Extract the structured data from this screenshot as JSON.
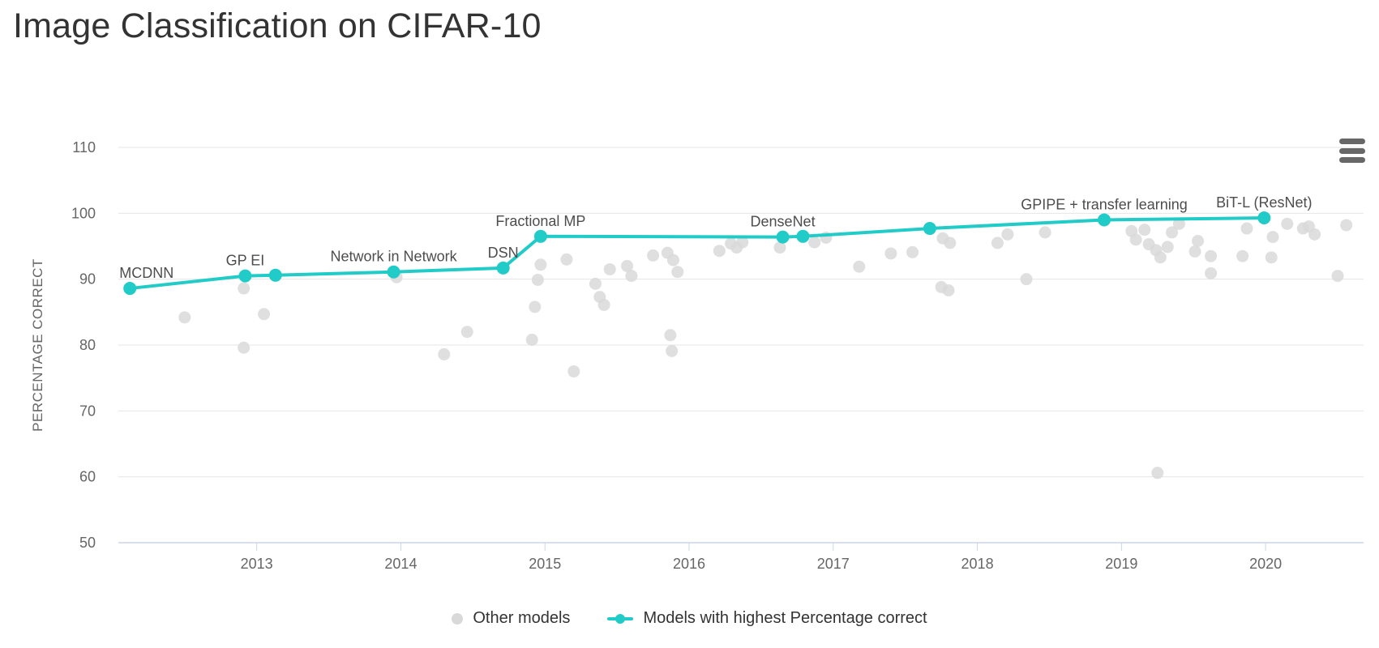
{
  "page": {
    "title": "Image Classification on CIFAR-10",
    "menu_icon": "hamburger",
    "accent_color": "#21cbc7",
    "other_color": "#d9d9d9"
  },
  "chart_data": {
    "type": "scatter",
    "title": "Image Classification on CIFAR-10",
    "xlabel": "",
    "ylabel": "PERCENTAGE CORRECT",
    "x_ticks": [
      "2013",
      "2014",
      "2015",
      "2016",
      "2017",
      "2018",
      "2019",
      "2020"
    ],
    "y_ticks": [
      "50",
      "60",
      "70",
      "80",
      "90",
      "100",
      "110"
    ],
    "x_range": [
      2012.04,
      2020.68
    ],
    "y_range": [
      50,
      110
    ],
    "grid": true,
    "legend_position": "bottom",
    "series": [
      {
        "name": "Other models",
        "type": "scatter",
        "color": "#d9d9d9",
        "points": [
          [
            2012.5,
            84.2
          ],
          [
            2012.91,
            88.6
          ],
          [
            2012.91,
            79.6
          ],
          [
            2013.05,
            84.7
          ],
          [
            2013.97,
            90.3
          ],
          [
            2014.3,
            78.6
          ],
          [
            2014.46,
            82.0
          ],
          [
            2014.91,
            80.8
          ],
          [
            2014.93,
            85.8
          ],
          [
            2014.95,
            89.9
          ],
          [
            2014.97,
            92.2
          ],
          [
            2015.15,
            93.0
          ],
          [
            2015.2,
            76.0
          ],
          [
            2015.35,
            89.3
          ],
          [
            2015.38,
            87.3
          ],
          [
            2015.41,
            86.1
          ],
          [
            2015.45,
            91.5
          ],
          [
            2015.57,
            92.0
          ],
          [
            2015.6,
            90.5
          ],
          [
            2015.75,
            93.6
          ],
          [
            2015.85,
            94.0
          ],
          [
            2015.87,
            81.5
          ],
          [
            2015.88,
            79.1
          ],
          [
            2015.89,
            92.9
          ],
          [
            2015.92,
            91.1
          ],
          [
            2016.21,
            94.3
          ],
          [
            2016.29,
            95.4
          ],
          [
            2016.33,
            94.8
          ],
          [
            2016.37,
            95.6
          ],
          [
            2016.63,
            94.8
          ],
          [
            2016.87,
            95.6
          ],
          [
            2016.95,
            96.3
          ],
          [
            2017.18,
            91.9
          ],
          [
            2017.4,
            93.9
          ],
          [
            2017.55,
            94.1
          ],
          [
            2017.75,
            88.8
          ],
          [
            2017.76,
            96.2
          ],
          [
            2017.8,
            88.3
          ],
          [
            2017.81,
            95.5
          ],
          [
            2018.14,
            95.5
          ],
          [
            2018.21,
            96.8
          ],
          [
            2018.34,
            90.0
          ],
          [
            2018.47,
            97.1
          ],
          [
            2019.07,
            97.3
          ],
          [
            2019.1,
            96.0
          ],
          [
            2019.16,
            97.5
          ],
          [
            2019.19,
            95.3
          ],
          [
            2019.24,
            94.4
          ],
          [
            2019.25,
            60.6
          ],
          [
            2019.27,
            93.3
          ],
          [
            2019.32,
            94.9
          ],
          [
            2019.35,
            97.1
          ],
          [
            2019.4,
            98.4
          ],
          [
            2019.51,
            94.2
          ],
          [
            2019.53,
            95.8
          ],
          [
            2019.62,
            93.5
          ],
          [
            2019.62,
            90.9
          ],
          [
            2019.84,
            93.5
          ],
          [
            2019.87,
            97.7
          ],
          [
            2020.04,
            93.3
          ],
          [
            2020.05,
            96.4
          ],
          [
            2020.15,
            98.4
          ],
          [
            2020.26,
            97.7
          ],
          [
            2020.3,
            98.0
          ],
          [
            2020.34,
            96.8
          ],
          [
            2020.5,
            90.5
          ],
          [
            2020.56,
            98.2
          ]
        ]
      },
      {
        "name": "Models with highest Percentage correct",
        "type": "line",
        "color": "#21cbc7",
        "points": [
          {
            "x": 2012.12,
            "y": 88.6,
            "label": "MCDNN"
          },
          {
            "x": 2012.92,
            "y": 90.5,
            "label": "GP EI"
          },
          {
            "x": 2013.13,
            "y": 90.6,
            "label": ""
          },
          {
            "x": 2013.95,
            "y": 91.1,
            "label": "Network in Network"
          },
          {
            "x": 2014.71,
            "y": 91.7,
            "label": "DSN"
          },
          {
            "x": 2014.97,
            "y": 96.5,
            "label": "Fractional MP"
          },
          {
            "x": 2016.65,
            "y": 96.4,
            "label": "DenseNet"
          },
          {
            "x": 2016.79,
            "y": 96.5,
            "label": ""
          },
          {
            "x": 2017.67,
            "y": 97.7,
            "label": ""
          },
          {
            "x": 2018.88,
            "y": 99.0,
            "label": "GPIPE + transfer learning"
          },
          {
            "x": 2019.99,
            "y": 99.3,
            "label": "BiT-L (ResNet)"
          }
        ]
      }
    ]
  }
}
